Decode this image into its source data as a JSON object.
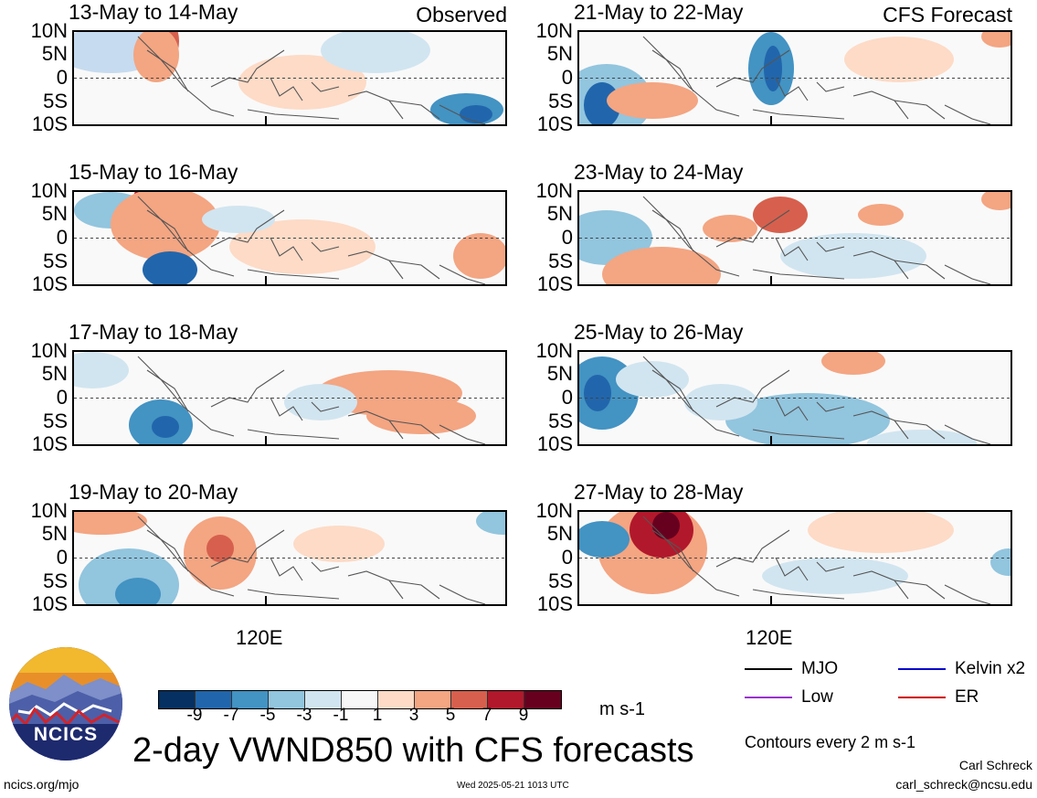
{
  "panels_left": [
    {
      "title": "13-May to 14-May",
      "label": "Observed"
    },
    {
      "title": "15-May to 16-May",
      "label": ""
    },
    {
      "title": "17-May to 18-May",
      "label": ""
    },
    {
      "title": "19-May to 20-May",
      "label": ""
    }
  ],
  "panels_right": [
    {
      "title": "21-May to 22-May",
      "label": "CFS Forecast"
    },
    {
      "title": "23-May to 24-May",
      "label": ""
    },
    {
      "title": "25-May to 26-May",
      "label": ""
    },
    {
      "title": "27-May to 28-May",
      "label": ""
    }
  ],
  "y_ticks": [
    "10N",
    "5N",
    "0",
    "5S",
    "10S"
  ],
  "x_tick": "120E",
  "colorbar": {
    "colors": [
      "#053061",
      "#2166ac",
      "#4393c3",
      "#92c5de",
      "#d1e5f0",
      "#f7f7f7",
      "#fddbc7",
      "#f4a582",
      "#d6604d",
      "#b2182b",
      "#67001f"
    ],
    "ticks": [
      "-9",
      "-7",
      "-5",
      "-3",
      "-1",
      "1",
      "3",
      "5",
      "7",
      "9"
    ],
    "units": "m s-1"
  },
  "legend": {
    "items": [
      {
        "label": "MJO",
        "color": "#000000"
      },
      {
        "label": "Kelvin x2",
        "color": "#0000cc"
      },
      {
        "label": "Low",
        "color": "#9933cc"
      },
      {
        "label": "ER",
        "color": "#cc0000"
      }
    ],
    "contours_note": "Contours every 2 m s-1"
  },
  "main_title": "2-day VWND850 with CFS forecasts",
  "logo_text": "NCICS",
  "footer": {
    "url": "ncics.org/mjo",
    "timestamp": "Wed 2025-05-21 1013 UTC",
    "author": "Carl Schreck",
    "email": "carl_schreck@ncsu.edu"
  }
}
